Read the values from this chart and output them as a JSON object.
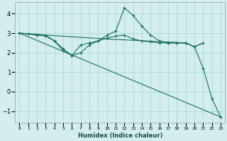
{
  "xlabel": "Humidex (Indice chaleur)",
  "bg_color": "#d4eeee",
  "grid_color": "#aad4d4",
  "line_color": "#1a6e5e",
  "xlim": [
    -0.5,
    23.5
  ],
  "ylim": [
    -1.6,
    4.6
  ],
  "yticks": [
    -1,
    0,
    1,
    2,
    3,
    4
  ],
  "xtick_values": [
    0,
    1,
    2,
    3,
    4,
    5,
    6,
    7,
    8,
    9,
    10,
    11,
    12,
    13,
    14,
    15,
    16,
    17,
    18,
    19,
    20,
    21,
    22,
    23
  ],
  "lines": [
    {
      "x": [
        0,
        1,
        2,
        3,
        4,
        5,
        6,
        7,
        8,
        9,
        10,
        11,
        12,
        13,
        14,
        15,
        16,
        17,
        18,
        19,
        20,
        21,
        22,
        23
      ],
      "y": [
        3.0,
        2.95,
        2.9,
        2.85,
        2.6,
        2.1,
        1.85,
        2.4,
        2.5,
        2.6,
        2.9,
        3.1,
        4.3,
        3.9,
        3.35,
        2.9,
        2.6,
        2.5,
        2.5,
        2.5,
        2.3,
        1.2,
        -0.35,
        -1.3
      ],
      "marker": "+"
    },
    {
      "x": [
        0,
        3,
        4,
        5,
        6,
        7,
        8,
        9,
        10,
        11,
        12,
        13,
        14,
        15,
        16,
        17,
        18,
        19,
        20,
        21
      ],
      "y": [
        3.0,
        2.9,
        2.6,
        2.2,
        1.85,
        2.0,
        2.4,
        2.6,
        2.75,
        2.85,
        2.9,
        2.7,
        2.6,
        2.55,
        2.5,
        2.5,
        2.5,
        2.5,
        2.3,
        2.5
      ],
      "marker": "+"
    },
    {
      "x": [
        0,
        3,
        10,
        19,
        20,
        21
      ],
      "y": [
        3.0,
        2.9,
        2.7,
        2.5,
        2.3,
        2.5
      ],
      "marker": null
    },
    {
      "x": [
        0,
        23
      ],
      "y": [
        3.0,
        -1.3
      ],
      "marker": null
    }
  ]
}
